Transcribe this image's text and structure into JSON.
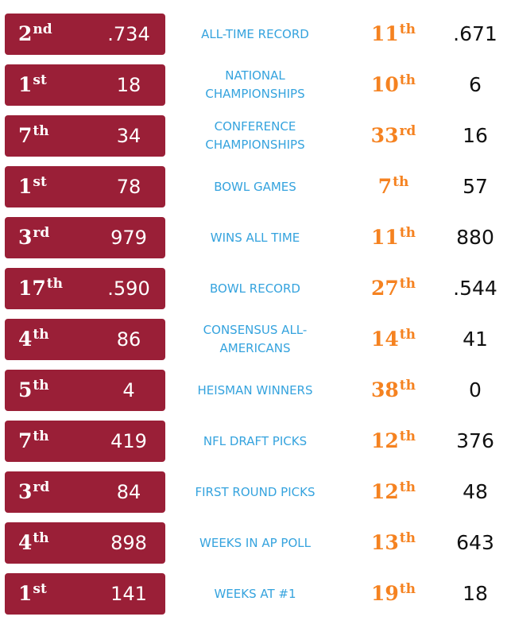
{
  "colors": {
    "left_pill_bg": "#9a1f37",
    "left_text": "#ffffff",
    "label_text": "#35a3de",
    "right_rank_text": "#f58220",
    "right_value_text": "#111111"
  },
  "rows": [
    {
      "left_rank": "2",
      "left_suffix": "nd",
      "left_value": ".734",
      "label": "ALL-TIME RECORD",
      "right_rank": "11",
      "right_suffix": "th",
      "right_value": ".671"
    },
    {
      "left_rank": "1",
      "left_suffix": "st",
      "left_value": "18",
      "label": "NATIONAL CHAMPIONSHIPS",
      "right_rank": "10",
      "right_suffix": "th",
      "right_value": "6"
    },
    {
      "left_rank": "7",
      "left_suffix": "th",
      "left_value": "34",
      "label": "CONFERENCE CHAMPIONSHIPS",
      "right_rank": "33",
      "right_suffix": "rd",
      "right_value": "16"
    },
    {
      "left_rank": "1",
      "left_suffix": "st",
      "left_value": "78",
      "label": "BOWL GAMES",
      "right_rank": "7",
      "right_suffix": "th",
      "right_value": "57"
    },
    {
      "left_rank": "3",
      "left_suffix": "rd",
      "left_value": "979",
      "label": "WINS ALL TIME",
      "right_rank": "11",
      "right_suffix": "th",
      "right_value": "880"
    },
    {
      "left_rank": "17",
      "left_suffix": "th",
      "left_value": ".590",
      "label": "BOWL RECORD",
      "right_rank": "27",
      "right_suffix": "th",
      "right_value": ".544"
    },
    {
      "left_rank": "4",
      "left_suffix": "th",
      "left_value": "86",
      "label": "CONSENSUS ALL-AMERICANS",
      "right_rank": "14",
      "right_suffix": "th",
      "right_value": "41"
    },
    {
      "left_rank": "5",
      "left_suffix": "th",
      "left_value": "4",
      "label": "HEISMAN WINNERS",
      "right_rank": "38",
      "right_suffix": "th",
      "right_value": "0"
    },
    {
      "left_rank": "7",
      "left_suffix": "th",
      "left_value": "419",
      "label": "NFL DRAFT PICKS",
      "right_rank": "12",
      "right_suffix": "th",
      "right_value": "376"
    },
    {
      "left_rank": "3",
      "left_suffix": "rd",
      "left_value": "84",
      "label": "FIRST ROUND PICKS",
      "right_rank": "12",
      "right_suffix": "th",
      "right_value": "48"
    },
    {
      "left_rank": "4",
      "left_suffix": "th",
      "left_value": "898",
      "label": "WEEKS IN AP POLL",
      "right_rank": "13",
      "right_suffix": "th",
      "right_value": "643"
    },
    {
      "left_rank": "1",
      "left_suffix": "st",
      "left_value": "141",
      "label": "WEEKS AT #1",
      "right_rank": "19",
      "right_suffix": "th",
      "right_value": "18"
    }
  ]
}
